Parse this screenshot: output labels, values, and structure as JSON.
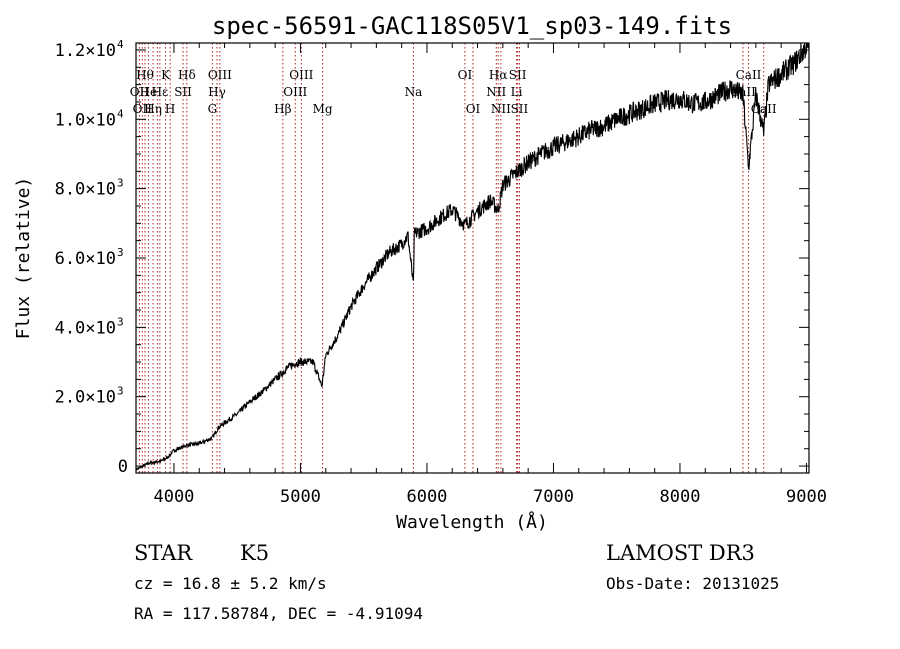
{
  "title": "spec-56591-GAC118S05V1_sp03-149.fits",
  "info": {
    "class": "STAR",
    "subclass": "K5",
    "survey": "LAMOST DR3",
    "cz": "cz = 16.8 ± 5.2 km/s",
    "obs_date": "Obs-Date: 20131025",
    "radec": "RA = 117.58784, DEC =  -4.91094"
  },
  "chart_data": {
    "type": "line",
    "title": "spec-56591-GAC118S05V1_sp03-149.fits",
    "xlabel": "Wavelength (Å)",
    "ylabel": "Flux (relative)",
    "xlim": [
      3700,
      9020
    ],
    "ylim": [
      -200,
      12200
    ],
    "grid": false,
    "x_ticks": [
      {
        "value": 4000,
        "label": "4000"
      },
      {
        "value": 5000,
        "label": "5000"
      },
      {
        "value": 6000,
        "label": "6000"
      },
      {
        "value": 7000,
        "label": "7000"
      },
      {
        "value": 8000,
        "label": "8000"
      },
      {
        "value": 9000,
        "label": "9000"
      }
    ],
    "y_ticks": [
      {
        "value": 0,
        "mant": "0",
        "exp": ""
      },
      {
        "value": 2000,
        "mant": "2.0×10",
        "exp": "3"
      },
      {
        "value": 4000,
        "mant": "4.0×10",
        "exp": "3"
      },
      {
        "value": 6000,
        "mant": "6.0×10",
        "exp": "3"
      },
      {
        "value": 8000,
        "mant": "8.0×10",
        "exp": "3"
      },
      {
        "value": 10000,
        "mant": "1.0×10",
        "exp": "4"
      },
      {
        "value": 12000,
        "mant": "1.2×10",
        "exp": "4"
      }
    ],
    "spectrum": {
      "x": [
        3700,
        3800,
        3900,
        3950,
        4000,
        4100,
        4200,
        4300,
        4350,
        4400,
        4500,
        4600,
        4700,
        4800,
        4861,
        4900,
        4950,
        5000,
        5100,
        5170,
        5200,
        5300,
        5400,
        5500,
        5600,
        5700,
        5800,
        5850,
        5893,
        5900,
        6000,
        6100,
        6200,
        6300,
        6400,
        6500,
        6563,
        6600,
        6700,
        6800,
        6900,
        7000,
        7100,
        7200,
        7300,
        7400,
        7500,
        7600,
        7700,
        7800,
        7900,
        8000,
        8100,
        8200,
        8300,
        8400,
        8498,
        8542,
        8600,
        8662,
        8700,
        8800,
        8900,
        9000
      ],
      "y": [
        -100,
        80,
        150,
        250,
        450,
        600,
        650,
        800,
        1100,
        1250,
        1500,
        1850,
        2150,
        2500,
        2700,
        2850,
        2950,
        3000,
        3000,
        2300,
        3200,
        3800,
        4600,
        5200,
        5700,
        6150,
        6400,
        6650,
        5200,
        6700,
        6850,
        7150,
        7400,
        6950,
        7350,
        7650,
        7400,
        8100,
        8450,
        8750,
        9000,
        9200,
        9350,
        9500,
        9700,
        9800,
        10000,
        10150,
        10300,
        10450,
        10550,
        10600,
        10450,
        10500,
        10700,
        10900,
        10700,
        8600,
        10700,
        9600,
        11000,
        11300,
        11600,
        12100
      ]
    },
    "lines": [
      {
        "w": 3727,
        "label": "OII",
        "row": 2
      },
      {
        "w": 3750,
        "label": "OII",
        "row": 3
      },
      {
        "w": 3771,
        "label": "Hθ",
        "row": 1
      },
      {
        "w": 3798,
        "label": "He",
        "row": 2
      },
      {
        "w": 3835,
        "label": "Hη",
        "row": 3
      },
      {
        "w": 3869,
        "label": "",
        "row": 0
      },
      {
        "w": 3889,
        "label": "Hε",
        "row": 2
      },
      {
        "w": 3934,
        "label": "K",
        "row": 1
      },
      {
        "w": 3970,
        "label": "H",
        "row": 3
      },
      {
        "w": 4072,
        "label": "SII",
        "row": 2
      },
      {
        "w": 4102,
        "label": "Hδ",
        "row": 1
      },
      {
        "w": 4304,
        "label": "G",
        "row": 3
      },
      {
        "w": 4340,
        "label": "Hγ",
        "row": 2
      },
      {
        "w": 4363,
        "label": "OIII",
        "row": 1
      },
      {
        "w": 4861,
        "label": "Hβ",
        "row": 3
      },
      {
        "w": 4959,
        "label": "OIII",
        "row": 2
      },
      {
        "w": 5007,
        "label": "OIII",
        "row": 1
      },
      {
        "w": 5175,
        "label": "Mg",
        "row": 3
      },
      {
        "w": 5893,
        "label": "Na",
        "row": 2
      },
      {
        "w": 6300,
        "label": "OI",
        "row": 1
      },
      {
        "w": 6364,
        "label": "OI",
        "row": 3
      },
      {
        "w": 6548,
        "label": "NII",
        "row": 2
      },
      {
        "w": 6563,
        "label": "Hα",
        "row": 1
      },
      {
        "w": 6584,
        "label": "NII",
        "row": 3
      },
      {
        "w": 6708,
        "label": "Li",
        "row": 2
      },
      {
        "w": 6717,
        "label": "SII",
        "row": 1
      },
      {
        "w": 6731,
        "label": "SII",
        "row": 3
      },
      {
        "w": 8498,
        "label": "CaII",
        "row": 2
      },
      {
        "w": 8542,
        "label": "CaII",
        "row": 1
      },
      {
        "w": 8662,
        "label": "CaII",
        "row": 3
      }
    ],
    "line_color": "#b22222",
    "spectrum_color": "#000000"
  }
}
